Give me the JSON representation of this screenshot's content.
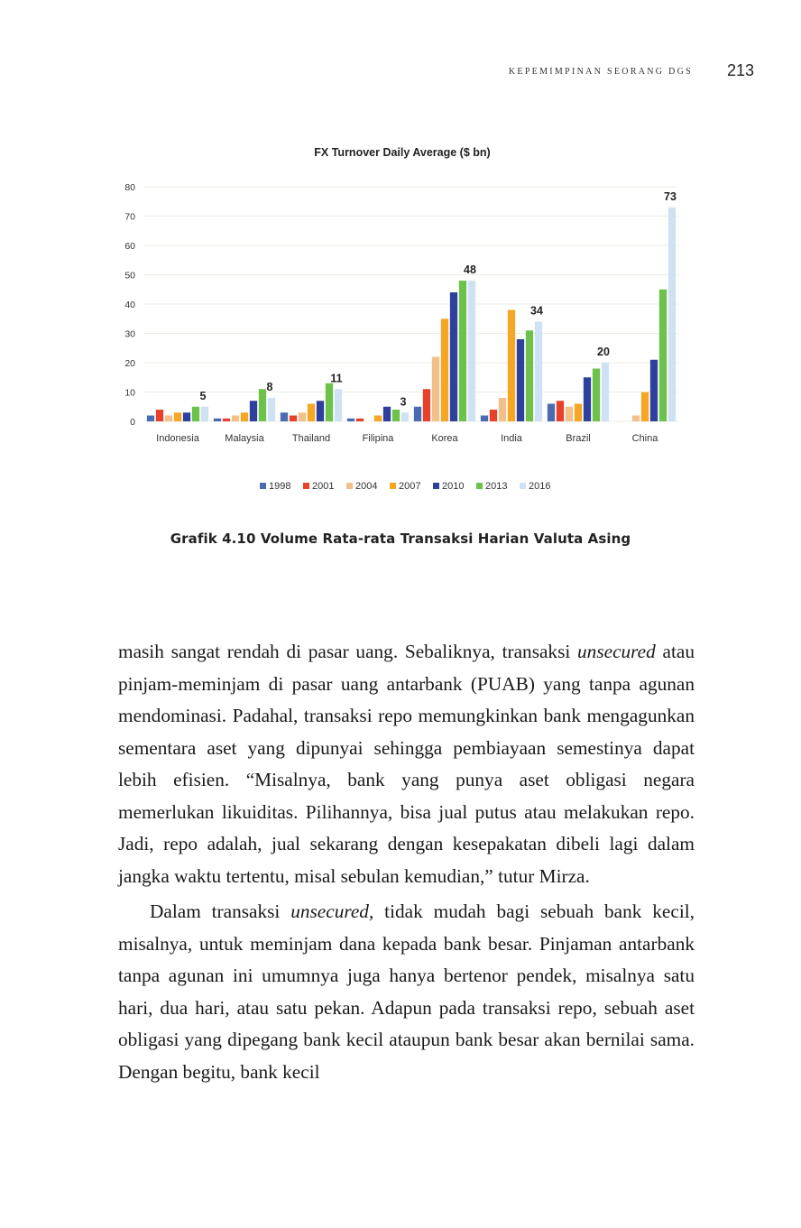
{
  "header": {
    "running_title": "KEPEMIMPINAN SEORANG DGS",
    "page_number": "213"
  },
  "chart_data": {
    "type": "bar",
    "title": "FX Turnover Daily Average ($ bn)",
    "categories": [
      "Indonesia",
      "Malaysia",
      "Thailand",
      "Filipina",
      "Korea",
      "India",
      "Brazil",
      "China"
    ],
    "ylim": [
      0,
      80
    ],
    "yticks": [
      0,
      10,
      20,
      30,
      40,
      50,
      60,
      70,
      80
    ],
    "legend_position": "bottom",
    "grid": true,
    "series": [
      {
        "name": "1998",
        "color": "#4a6bb0",
        "values": [
          2,
          1,
          3,
          1,
          5,
          2,
          6,
          null
        ]
      },
      {
        "name": "2001",
        "color": "#e8402a",
        "values": [
          4,
          1,
          2,
          1,
          11,
          4,
          7,
          null
        ]
      },
      {
        "name": "2004",
        "color": "#f2c08a",
        "values": [
          2,
          2,
          3,
          null,
          22,
          8,
          5,
          2
        ]
      },
      {
        "name": "2007",
        "color": "#f5a623",
        "values": [
          3,
          3,
          6,
          2,
          35,
          38,
          6,
          10
        ]
      },
      {
        "name": "2010",
        "color": "#2e3f9e",
        "values": [
          3,
          7,
          7,
          5,
          44,
          28,
          15,
          21
        ]
      },
      {
        "name": "2013",
        "color": "#6cc24a",
        "values": [
          5,
          11,
          13,
          4,
          48,
          31,
          18,
          45
        ]
      },
      {
        "name": "2016",
        "color": "#cfe2f3",
        "values": [
          5,
          8,
          11,
          3,
          48,
          34,
          20,
          73
        ]
      }
    ],
    "data_labels": [
      {
        "category": "Indonesia",
        "text": "5"
      },
      {
        "category": "Malaysia",
        "text": "8"
      },
      {
        "category": "Thailand",
        "text": "11"
      },
      {
        "category": "Filipina",
        "text": "3"
      },
      {
        "category": "Korea",
        "text": "48"
      },
      {
        "category": "India",
        "text": "34"
      },
      {
        "category": "Brazil",
        "text": "20"
      },
      {
        "category": "China",
        "text": "73"
      }
    ]
  },
  "figure": {
    "caption": "Grafik 4.10 Volume Rata-rata Transaksi Harian Valuta Asing"
  },
  "body": {
    "p1_a": "masih sangat rendah di pasar uang. Sebaliknya, transaksi ",
    "p1_em": "unsecured",
    "p1_b": " atau pinjam-meminjam di pasar uang antarbank (PUAB) yang tanpa agunan mendominasi. Padahal, transaksi repo memungkinkan bank mengagunkan sementara aset yang dipunyai sehingga pembiayaan semestinya dapat lebih efisien. “Misalnya, bank yang punya aset obligasi negara memerlukan likuiditas. Pilihannya, bisa jual putus atau melakukan repo. Jadi, repo adalah, jual sekarang dengan kesepakatan dibeli lagi dalam jangka waktu tertentu, misal sebulan kemudian,” tutur Mirza.",
    "p2_a": "Dalam transaksi ",
    "p2_em": "unsecured",
    "p2_b": ", tidak mudah bagi sebuah bank kecil, misalnya, untuk meminjam dana kepada bank besar. Pinjaman antarbank tanpa agunan ini umumnya juga hanya bertenor pendek, misalnya satu hari, dua hari, atau satu pekan. Adapun pada transaksi repo, sebuah aset obligasi yang dipegang bank kecil ataupun bank besar akan bernilai sama. Dengan begitu, bank kecil"
  }
}
